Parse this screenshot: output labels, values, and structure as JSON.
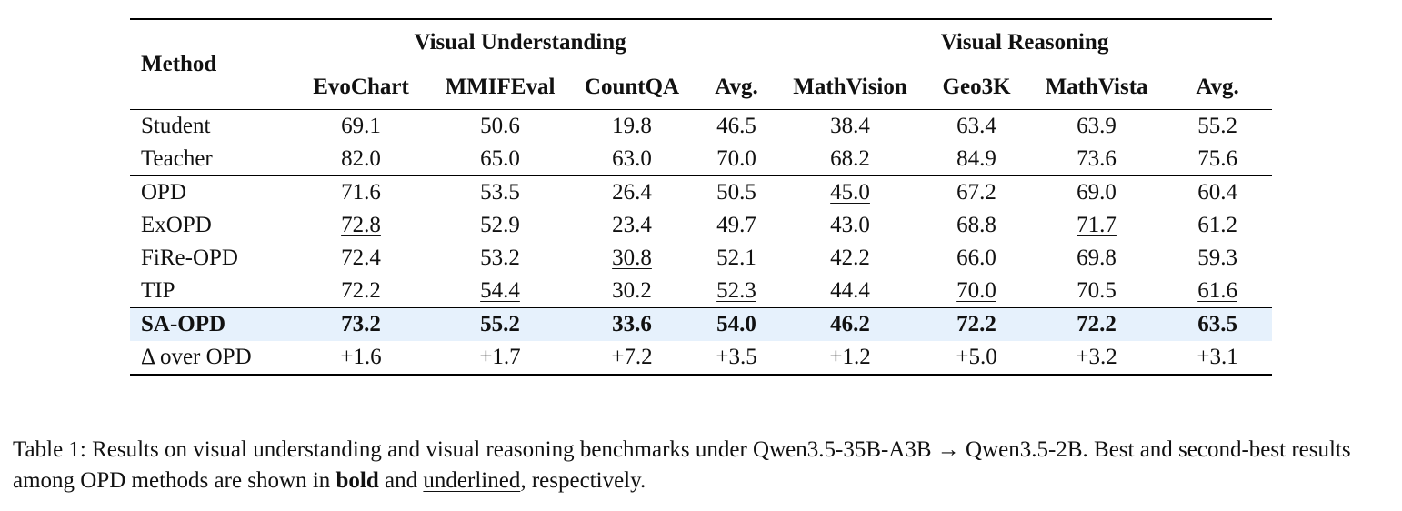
{
  "table": {
    "method_header": "Method",
    "groups": [
      {
        "label": "Visual Understanding",
        "columns": [
          "EvoChart",
          "MMIFEval",
          "CountQA",
          "Avg."
        ]
      },
      {
        "label": "Visual Reasoning",
        "columns": [
          "MathVision",
          "Geo3K",
          "MathVista",
          "Avg."
        ]
      }
    ],
    "sections": [
      {
        "rows": [
          {
            "method": "Student",
            "values": [
              "69.1",
              "50.6",
              "19.8",
              "46.5",
              "38.4",
              "63.4",
              "63.9",
              "55.2"
            ],
            "underline": []
          },
          {
            "method": "Teacher",
            "values": [
              "82.0",
              "65.0",
              "63.0",
              "70.0",
              "68.2",
              "84.9",
              "73.6",
              "75.6"
            ],
            "underline": []
          }
        ]
      },
      {
        "rows": [
          {
            "method": "OPD",
            "values": [
              "71.6",
              "53.5",
              "26.4",
              "50.5",
              "45.0",
              "67.2",
              "69.0",
              "60.4"
            ],
            "underline": [
              4
            ]
          },
          {
            "method": "ExOPD",
            "values": [
              "72.8",
              "52.9",
              "23.4",
              "49.7",
              "43.0",
              "68.8",
              "71.7",
              "61.2"
            ],
            "underline": [
              0,
              6
            ]
          },
          {
            "method": "FiRe-OPD",
            "values": [
              "72.4",
              "53.2",
              "30.8",
              "52.1",
              "42.2",
              "66.0",
              "69.8",
              "59.3"
            ],
            "underline": [
              2
            ]
          },
          {
            "method": "TIP",
            "values": [
              "72.2",
              "54.4",
              "30.2",
              "52.3",
              "44.4",
              "70.0",
              "70.5",
              "61.6"
            ],
            "underline": [
              1,
              3,
              5,
              7
            ]
          }
        ]
      },
      {
        "rows": [
          {
            "method": "SA-OPD",
            "values": [
              "73.2",
              "55.2",
              "33.6",
              "54.0",
              "46.2",
              "72.2",
              "72.2",
              "63.5"
            ],
            "underline": [],
            "highlight": true
          },
          {
            "method": "Δ over OPD",
            "values": [
              "+1.6",
              "+1.7",
              "+7.2",
              "+3.5",
              "+1.2",
              "+5.0",
              "+3.2",
              "+3.1"
            ],
            "underline": []
          }
        ]
      }
    ],
    "highlight_color": "#e6f1fc"
  },
  "caption": {
    "lead": "Table 1: Results on visual understanding and visual reasoning benchmarks under Qwen3.5-35B-A3B → Qwen3.5-2B. Best and second-best results among OPD methods are shown in ",
    "bold_word": "bold",
    "and_word": " and ",
    "underline_word": "underlined",
    "tail": ", respectively."
  }
}
